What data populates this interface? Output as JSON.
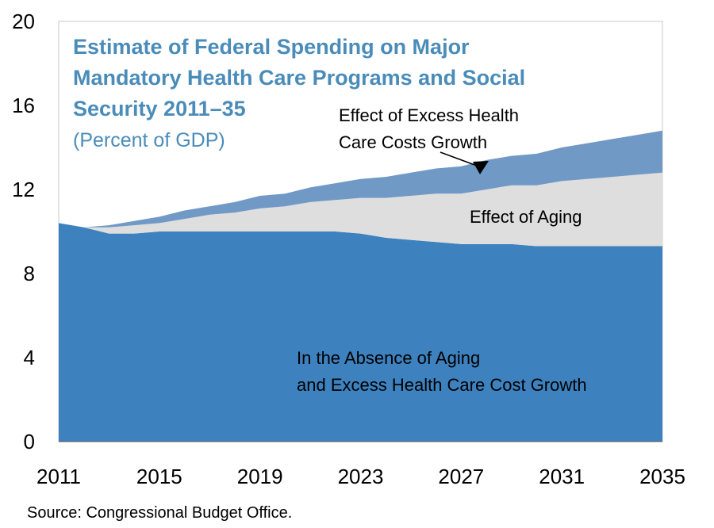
{
  "chart_data": {
    "type": "area",
    "stacked": true,
    "title_lines": [
      "Estimate of Federal Spending on Major",
      "Mandatory Health Care Programs and Social",
      "Security 2011–35"
    ],
    "subtitle": "(Percent of GDP)",
    "x": [
      2011,
      2012,
      2013,
      2014,
      2015,
      2016,
      2017,
      2018,
      2019,
      2020,
      2021,
      2022,
      2023,
      2024,
      2025,
      2026,
      2027,
      2028,
      2029,
      2030,
      2031,
      2032,
      2033,
      2034,
      2035
    ],
    "series": [
      {
        "name": "In the Absence of Aging and Excess Health Care Cost Growth",
        "color": "#3d82bf",
        "values": [
          10.4,
          10.2,
          9.9,
          9.9,
          10.0,
          10.0,
          10.0,
          10.0,
          10.0,
          10.0,
          10.0,
          10.0,
          9.9,
          9.7,
          9.6,
          9.5,
          9.4,
          9.4,
          9.4,
          9.3,
          9.3,
          9.3,
          9.3,
          9.3,
          9.3
        ]
      },
      {
        "name": "Effect of Aging",
        "color": "#dedede",
        "values": [
          0.0,
          0.0,
          0.3,
          0.4,
          0.4,
          0.6,
          0.8,
          0.9,
          1.1,
          1.2,
          1.4,
          1.5,
          1.7,
          1.9,
          2.1,
          2.3,
          2.4,
          2.6,
          2.8,
          2.9,
          3.1,
          3.2,
          3.3,
          3.4,
          3.5
        ]
      },
      {
        "name": "Effect of Excess Health Care Costs Growth",
        "color": "#7099c6",
        "values": [
          0.0,
          0.0,
          0.1,
          0.2,
          0.3,
          0.4,
          0.4,
          0.5,
          0.6,
          0.6,
          0.7,
          0.8,
          0.9,
          1.0,
          1.1,
          1.2,
          1.3,
          1.4,
          1.4,
          1.5,
          1.6,
          1.7,
          1.8,
          1.9,
          2.0
        ]
      }
    ],
    "xticks": [
      2011,
      2015,
      2019,
      2023,
      2027,
      2031,
      2035
    ],
    "yticks": [
      0,
      4,
      8,
      12,
      16,
      20
    ],
    "ylim": [
      0,
      20
    ],
    "xlim": [
      2011,
      2035
    ],
    "annotations": {
      "excess": [
        "Effect of Excess Health",
        "Care Costs Growth"
      ],
      "aging": "Effect of Aging",
      "absence": [
        "In the Absence of Aging",
        "and Excess Health Care Cost Growth"
      ]
    },
    "grid": false
  },
  "source": "Source: Congressional Budget Office."
}
